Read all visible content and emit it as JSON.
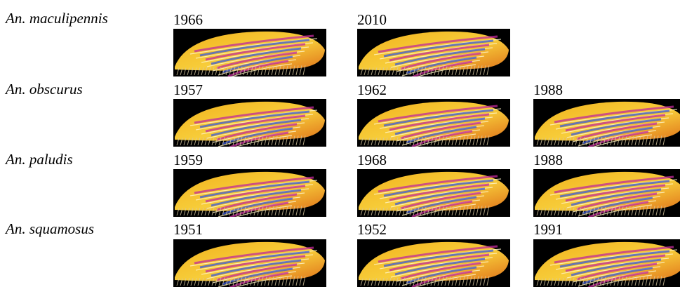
{
  "rows": [
    {
      "species": "An. maculipennis",
      "years": [
        "1966",
        "2010",
        ""
      ]
    },
    {
      "species": "An. obscurus",
      "years": [
        "1957",
        "1962",
        "1988"
      ]
    },
    {
      "species": "An. paludis",
      "years": [
        "1959",
        "1968",
        "1988"
      ]
    },
    {
      "species": "An. squamosus",
      "years": [
        "1951",
        "1952",
        "1991"
      ]
    }
  ],
  "image_subject": "mosquito-wing-interference-pattern",
  "colors": {
    "wing_gold": "#f2b21e",
    "wing_orange": "#e0731a",
    "wing_blue": "#3a5ad8",
    "wing_magenta": "#c02a9a",
    "background": "#000000"
  }
}
